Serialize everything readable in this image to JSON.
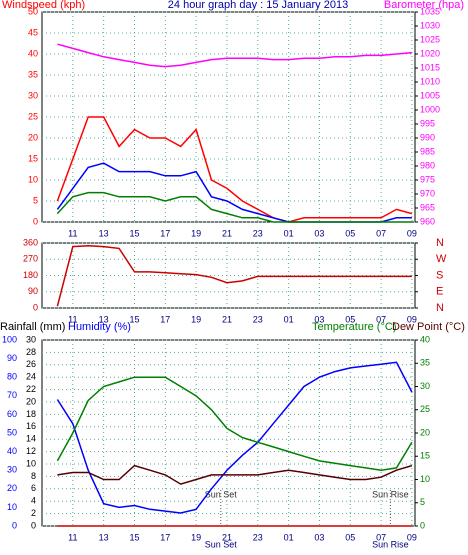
{
  "chart_data": [
    {
      "type": "line",
      "title": "24 hour graph day : 15 January 2013",
      "ylabel": "Windspeed (kph)",
      "y2label": "Barometer (hpa)",
      "x": [
        10,
        11,
        12,
        13,
        14,
        15,
        16,
        17,
        18,
        19,
        20,
        21,
        22,
        23,
        24,
        25,
        26,
        27,
        28,
        29,
        30,
        31,
        32,
        33
      ],
      "xlim": [
        9,
        33.2
      ],
      "xticks": [
        11,
        13,
        15,
        17,
        19,
        21,
        23,
        {
          "value": 25,
          "label": "01"
        },
        {
          "value": 27,
          "label": "03"
        },
        {
          "value": 29,
          "label": "05"
        },
        {
          "value": 31,
          "label": "07"
        },
        {
          "value": 33,
          "label": "09"
        }
      ],
      "ylim": [
        0,
        50
      ],
      "yticks": [
        0,
        5,
        10,
        15,
        20,
        25,
        30,
        35,
        40,
        45,
        50
      ],
      "y2lim": [
        960,
        1035
      ],
      "y2ticks": [
        960,
        965,
        970,
        975,
        980,
        985,
        990,
        995,
        1000,
        1005,
        1010,
        1015,
        1020,
        1025,
        1030,
        1035
      ],
      "grid": true,
      "series": [
        {
          "color": "#ff0000",
          "values": [
            5,
            15,
            25,
            25,
            18,
            22,
            20,
            20,
            18,
            22,
            10,
            8,
            5,
            3,
            1,
            0,
            1,
            1,
            1,
            1,
            1,
            1,
            3,
            2
          ]
        },
        {
          "color": "#0000ff",
          "values": [
            3,
            8,
            13,
            14,
            12,
            12,
            12,
            11,
            11,
            12,
            6,
            5,
            3,
            2,
            1,
            0,
            0,
            0,
            0,
            0,
            0,
            0,
            1,
            1
          ]
        },
        {
          "color": "#008000",
          "values": [
            2,
            6,
            7,
            7,
            6,
            6,
            6,
            5,
            6,
            6,
            3,
            2,
            1,
            1,
            0,
            0,
            0,
            0,
            0,
            0,
            0,
            0,
            0,
            0
          ]
        },
        {
          "color": "#ff00ff",
          "axis": "y2",
          "values": [
            1023.5,
            1022,
            1020.5,
            1019,
            1018,
            1017,
            1016,
            1015.5,
            1016,
            1017,
            1018,
            1018.5,
            1018.5,
            1018.5,
            1018,
            1018,
            1018.5,
            1018.5,
            1019,
            1019,
            1019.5,
            1019.5,
            1020,
            1020.5
          ]
        }
      ]
    },
    {
      "type": "line",
      "x": [
        10,
        11,
        12,
        13,
        14,
        15,
        16,
        17,
        18,
        19,
        20,
        21,
        22,
        23,
        24,
        25,
        26,
        27,
        28,
        29,
        30,
        31,
        32,
        33
      ],
      "xlim": [
        9,
        33.2
      ],
      "xticks": [
        11,
        13,
        15,
        17,
        19,
        21,
        23,
        {
          "value": 25,
          "label": "01"
        },
        {
          "value": 27,
          "label": "03"
        },
        {
          "value": 29,
          "label": "05"
        },
        {
          "value": 31,
          "label": "07"
        },
        {
          "value": 33,
          "label": "09"
        }
      ],
      "ylim": [
        0,
        360
      ],
      "yticks": [
        0,
        90,
        180,
        270,
        360
      ],
      "y2lim": [
        0,
        360
      ],
      "y2ticks": [
        {
          "value": 0,
          "label": "N"
        },
        {
          "value": 90,
          "label": "E"
        },
        {
          "value": 180,
          "label": "S"
        },
        {
          "value": 270,
          "label": "W"
        },
        {
          "value": 360,
          "label": "N"
        }
      ],
      "grid": true,
      "series": [
        {
          "color": "#cc0000",
          "values": [
            10,
            340,
            345,
            340,
            330,
            200,
            200,
            195,
            190,
            185,
            170,
            140,
            150,
            175,
            175,
            175,
            175,
            175,
            175,
            175,
            175,
            175,
            175,
            175
          ]
        }
      ]
    },
    {
      "type": "line",
      "x": [
        10,
        11,
        12,
        13,
        14,
        15,
        16,
        17,
        18,
        19,
        20,
        21,
        22,
        23,
        24,
        25,
        26,
        27,
        28,
        29,
        30,
        31,
        32,
        33
      ],
      "xlim": [
        9,
        33.2
      ],
      "xticks": [
        11,
        13,
        15,
        17,
        19,
        21,
        23,
        {
          "value": 25,
          "label": "01"
        },
        {
          "value": 27,
          "label": "03"
        },
        {
          "value": 29,
          "label": "05"
        },
        {
          "value": 31,
          "label": "07"
        },
        {
          "value": 33,
          "label": "09"
        }
      ],
      "ylim": [
        0,
        30
      ],
      "yticks": [
        0,
        2,
        4,
        6,
        8,
        10,
        12,
        14,
        16,
        18,
        20,
        22,
        24,
        26,
        28,
        30
      ],
      "y3lim": [
        0,
        100
      ],
      "y3ticks": [
        0,
        10,
        20,
        30,
        40,
        50,
        60,
        70,
        80,
        90,
        100
      ],
      "y2lim": [
        0,
        40
      ],
      "y2ticks": [
        0,
        5,
        10,
        15,
        20,
        25,
        30,
        35,
        40
      ],
      "grid": true,
      "annotations": [
        {
          "text": "Sun Set",
          "x": 20.6
        },
        {
          "text": "Sun Rise",
          "x": 31.6
        }
      ],
      "series": [
        {
          "name": "Rainfall (mm)",
          "color": "#cc0000",
          "values": [
            0,
            0,
            0,
            0,
            0,
            0,
            0,
            0,
            0,
            0,
            0,
            0,
            0,
            0,
            0,
            0,
            0,
            0,
            0,
            0,
            0,
            0,
            0,
            0
          ]
        },
        {
          "name": "Humidity (%)",
          "color": "#0000ff",
          "axis": "y3",
          "values": [
            68,
            55,
            30,
            12,
            10,
            11,
            9,
            8,
            7,
            9,
            20,
            30,
            38,
            45,
            55,
            65,
            75,
            80,
            83,
            85,
            86,
            87,
            88,
            72
          ]
        },
        {
          "name": "Temperature (°C)",
          "color": "#008000",
          "axis": "y2",
          "values": [
            14,
            20,
            27,
            30,
            31,
            32,
            32,
            32,
            30,
            28,
            25,
            21,
            19,
            18,
            17,
            16,
            15,
            14,
            13.5,
            13,
            12.5,
            12,
            12.5,
            18
          ]
        },
        {
          "name": "Dew Point (°C)",
          "color": "#550000",
          "axis": "y2",
          "values": [
            11,
            11.5,
            11.5,
            10,
            10,
            13,
            12,
            11,
            9,
            10,
            11,
            11,
            11,
            11,
            11.5,
            12,
            11.5,
            11,
            10.5,
            10,
            10,
            10.5,
            12,
            13
          ]
        }
      ]
    }
  ]
}
